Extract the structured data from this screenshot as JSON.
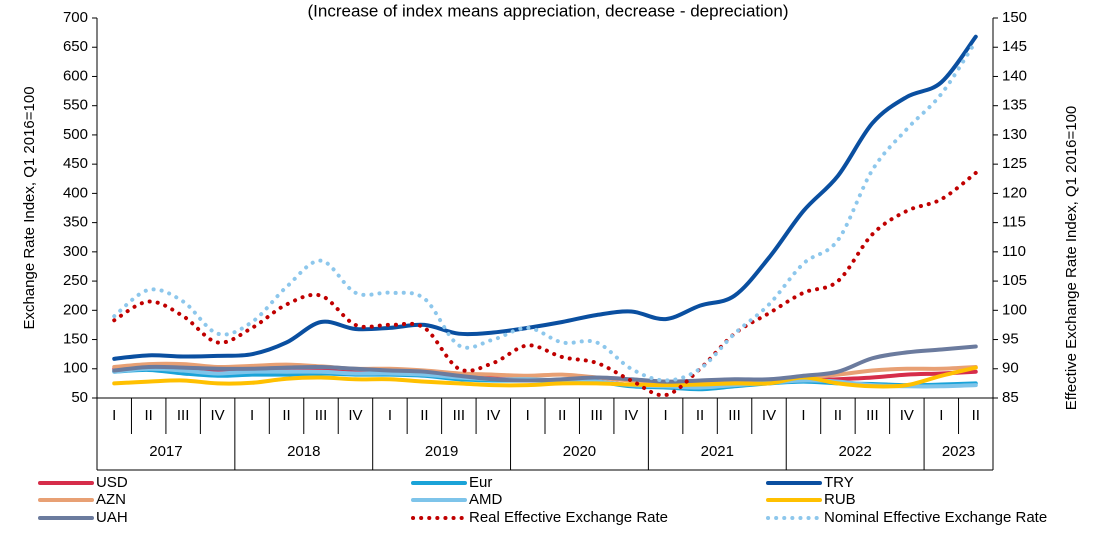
{
  "chart_data": {
    "type": "line",
    "subtitle": "(Increase of index means appreciation, decrease - depreciation)",
    "y_label": "Exchange Rate Index, Q1 2016=100",
    "y2_label": "Effective Exchange Rate Index, Q1 2016=100",
    "categories": [
      "I",
      "II",
      "III",
      "IV",
      "I",
      "II",
      "III",
      "IV",
      "I",
      "II",
      "III",
      "IV",
      "I",
      "II",
      "III",
      "IV",
      "I",
      "II",
      "III",
      "IV",
      "I",
      "II",
      "III",
      "IV",
      "I",
      "II"
    ],
    "category_groups": [
      "2017",
      "2018",
      "2019",
      "2020",
      "2021",
      "2022",
      "2023"
    ],
    "ylim": [
      50,
      700
    ],
    "yticks": [
      50,
      100,
      150,
      200,
      250,
      300,
      350,
      400,
      450,
      500,
      550,
      600,
      650,
      700
    ],
    "y2lim": [
      85,
      150
    ],
    "y2ticks": [
      85,
      90,
      95,
      100,
      105,
      110,
      115,
      120,
      125,
      130,
      135,
      140,
      145,
      150
    ],
    "series": [
      {
        "name": "USD",
        "color": "#d62d4a",
        "values": [
          100,
          102,
          98,
          95,
          95,
          97,
          100,
          97,
          97,
          95,
          88,
          85,
          82,
          80,
          78,
          72,
          70,
          68,
          72,
          76,
          80,
          82,
          85,
          90,
          92,
          95
        ]
      },
      {
        "name": "Eur",
        "color": "#1aa3d8",
        "values": [
          95,
          98,
          92,
          88,
          90,
          90,
          92,
          90,
          90,
          88,
          82,
          80,
          80,
          80,
          78,
          70,
          68,
          65,
          70,
          75,
          78,
          75,
          74,
          72,
          73,
          75
        ]
      },
      {
        "name": "TRY",
        "color": "#0a4fa0",
        "values": [
          117,
          123,
          121,
          122,
          125,
          145,
          180,
          168,
          170,
          175,
          160,
          162,
          170,
          180,
          192,
          198,
          185,
          208,
          225,
          290,
          370,
          430,
          520,
          565,
          590,
          668
        ]
      },
      {
        "name": "AZN",
        "color": "#e8a074",
        "values": [
          103,
          108,
          108,
          103,
          105,
          107,
          104,
          100,
          100,
          97,
          92,
          90,
          88,
          90,
          85,
          80,
          78,
          76,
          78,
          80,
          85,
          90,
          97,
          100,
          100,
          103
        ]
      },
      {
        "name": "AMD",
        "color": "#7ec4ea",
        "values": [
          95,
          100,
          97,
          92,
          95,
          95,
          95,
          92,
          92,
          90,
          85,
          82,
          82,
          80,
          78,
          72,
          70,
          68,
          72,
          76,
          80,
          78,
          72,
          70,
          70,
          72
        ]
      },
      {
        "name": "RUB",
        "color": "#ffc000",
        "values": [
          75,
          78,
          80,
          75,
          76,
          83,
          85,
          82,
          82,
          78,
          75,
          72,
          72,
          75,
          75,
          73,
          72,
          73,
          75,
          75,
          85,
          75,
          70,
          72,
          88,
          102
        ]
      },
      {
        "name": "UAH",
        "color": "#6b7b9e",
        "values": [
          97,
          103,
          102,
          100,
          100,
          102,
          103,
          100,
          97,
          95,
          88,
          82,
          80,
          82,
          85,
          82,
          78,
          80,
          82,
          82,
          88,
          95,
          118,
          128,
          133,
          138
        ]
      },
      {
        "name": "Real Effective Exchange Rate",
        "color": "#c00000",
        "style": "dotted",
        "axis": "y2",
        "values": [
          98.3,
          101.5,
          99,
          94.5,
          97,
          101,
          102.5,
          97.5,
          97.5,
          97,
          90,
          91,
          94,
          92,
          91,
          88,
          85.5,
          90,
          96,
          99.5,
          103,
          105,
          113,
          117,
          119,
          123.5
        ]
      },
      {
        "name": "Nominal Effective Exchange Rate",
        "color": "#8dc7ec",
        "style": "dotted",
        "axis": "y2",
        "values": [
          99,
          103.5,
          101.5,
          96,
          98,
          104,
          108.5,
          103,
          103,
          102,
          94,
          95,
          97,
          94.5,
          94.5,
          90,
          88,
          90,
          96,
          101,
          108,
          112,
          124,
          131,
          137,
          146
        ]
      }
    ]
  }
}
